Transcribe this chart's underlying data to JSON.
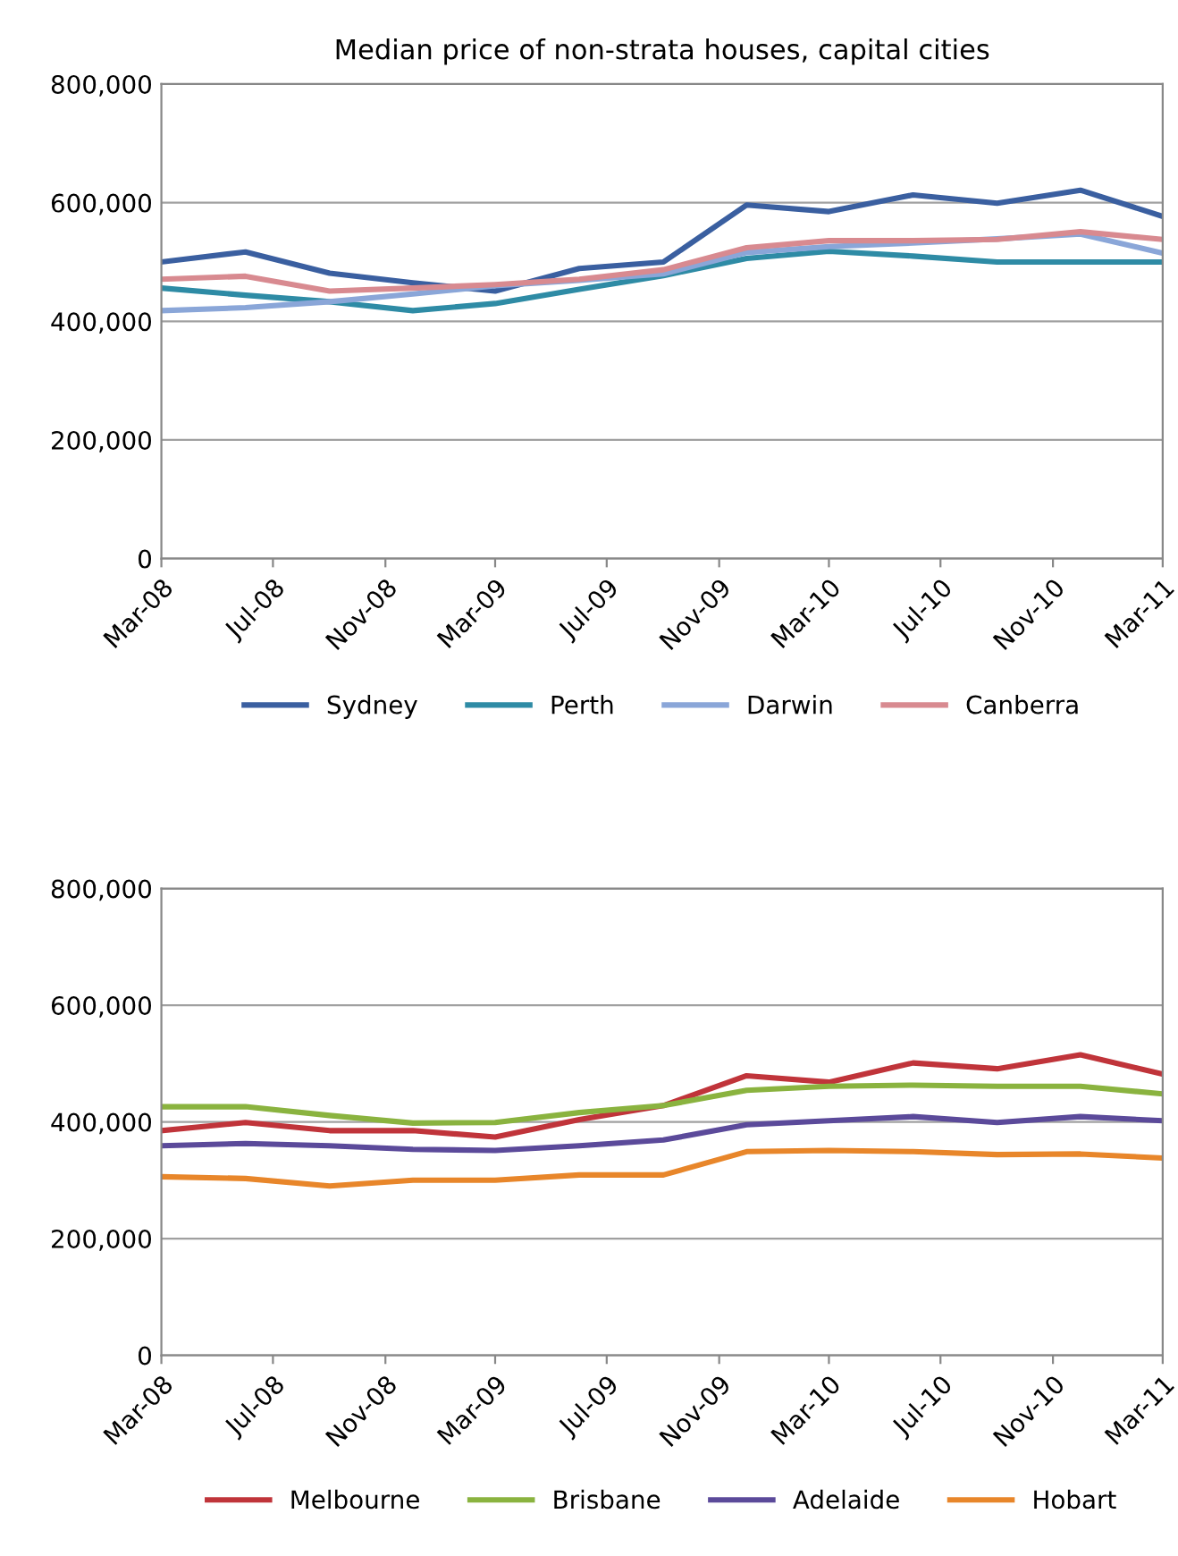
{
  "chart_data": [
    {
      "type": "line",
      "title": "Median price of non-strata houses, capital cities",
      "x": [
        "2008-03",
        "2008-06",
        "2008-09",
        "2008-12",
        "2009-03",
        "2009-06",
        "2009-09",
        "2009-12",
        "2010-03",
        "2010-06",
        "2010-09",
        "2010-12",
        "2011-03"
      ],
      "series": [
        {
          "name": "Sydney",
          "color": "#3a5fa0",
          "values": [
            500000,
            517000,
            481000,
            465000,
            451000,
            489000,
            500000,
            596000,
            585000,
            613000,
            599000,
            621000,
            577000
          ]
        },
        {
          "name": "Perth",
          "color": "#2e8ba5",
          "values": [
            456000,
            444000,
            433000,
            418000,
            430000,
            454000,
            477000,
            506000,
            518000,
            510000,
            500000,
            500000,
            500000
          ]
        },
        {
          "name": "Darwin",
          "color": "#8aa6d8",
          "values": [
            418000,
            423000,
            433000,
            446000,
            460000,
            469000,
            480000,
            516000,
            526000,
            532000,
            539000,
            547000,
            515000
          ]
        },
        {
          "name": "Canberra",
          "color": "#d88a90",
          "values": [
            471000,
            476000,
            451000,
            456000,
            462000,
            471000,
            487000,
            524000,
            536000,
            536000,
            538000,
            551000,
            538000
          ]
        }
      ],
      "xlim": [
        "2008-03",
        "2011-03"
      ],
      "xticks": [
        {
          "value": "2008-03",
          "label": "Mar-08"
        },
        {
          "value": "2008-07",
          "label": "Jul-08"
        },
        {
          "value": "2008-11",
          "label": "Nov-08"
        },
        {
          "value": "2009-03",
          "label": "Mar-09"
        },
        {
          "value": "2009-07",
          "label": "Jul-09"
        },
        {
          "value": "2009-11",
          "label": "Nov-09"
        },
        {
          "value": "2010-03",
          "label": "Mar-10"
        },
        {
          "value": "2010-07",
          "label": "Jul-10"
        },
        {
          "value": "2010-11",
          "label": "Nov-10"
        },
        {
          "value": "2011-03",
          "label": "Mar-11"
        }
      ],
      "ylim": [
        0,
        800000
      ],
      "yticks": [
        {
          "value": 0,
          "label": "0"
        },
        {
          "value": 200000,
          "label": "200,000"
        },
        {
          "value": 400000,
          "label": "400,000"
        },
        {
          "value": 600000,
          "label": "600,000"
        },
        {
          "value": 800000,
          "label": "800,000"
        }
      ],
      "grid": "y",
      "legend": "bottom",
      "marker": "none",
      "line_style": "solid"
    },
    {
      "type": "line",
      "x": [
        "2008-03",
        "2008-06",
        "2008-09",
        "2008-12",
        "2009-03",
        "2009-06",
        "2009-09",
        "2009-12",
        "2010-03",
        "2010-06",
        "2010-09",
        "2010-12",
        "2011-03"
      ],
      "series": [
        {
          "name": "Melbourne",
          "color": "#c0343a",
          "values": [
            385000,
            399000,
            385000,
            385000,
            374000,
            404000,
            428000,
            479000,
            468000,
            501000,
            491000,
            515000,
            482000
          ]
        },
        {
          "name": "Brisbane",
          "color": "#8ab33f",
          "values": [
            426000,
            426000,
            411000,
            398000,
            399000,
            416000,
            428000,
            454000,
            461000,
            463000,
            461000,
            461000,
            448000
          ]
        },
        {
          "name": "Adelaide",
          "color": "#5b4a9a",
          "values": [
            359000,
            363000,
            359000,
            353000,
            351000,
            359000,
            369000,
            395000,
            402000,
            409000,
            399000,
            409000,
            402000
          ]
        },
        {
          "name": "Hobart",
          "color": "#e8862a",
          "values": [
            306000,
            303000,
            290000,
            300000,
            300000,
            309000,
            309000,
            349000,
            351000,
            349000,
            344000,
            345000,
            338000
          ]
        }
      ],
      "xlim": [
        "2008-03",
        "2011-03"
      ],
      "xticks": [
        {
          "value": "2008-03",
          "label": "Mar-08"
        },
        {
          "value": "2008-07",
          "label": "Jul-08"
        },
        {
          "value": "2008-11",
          "label": "Nov-08"
        },
        {
          "value": "2009-03",
          "label": "Mar-09"
        },
        {
          "value": "2009-07",
          "label": "Jul-09"
        },
        {
          "value": "2009-11",
          "label": "Nov-09"
        },
        {
          "value": "2010-03",
          "label": "Mar-10"
        },
        {
          "value": "2010-07",
          "label": "Jul-10"
        },
        {
          "value": "2010-11",
          "label": "Nov-10"
        },
        {
          "value": "2011-03",
          "label": "Mar-11"
        }
      ],
      "ylim": [
        0,
        800000
      ],
      "yticks": [
        {
          "value": 0,
          "label": "0"
        },
        {
          "value": 200000,
          "label": "200,000"
        },
        {
          "value": 400000,
          "label": "400,000"
        },
        {
          "value": 600000,
          "label": "600,000"
        },
        {
          "value": 800000,
          "label": "800,000"
        }
      ],
      "grid": "y",
      "legend": "bottom",
      "marker": "none",
      "line_style": "solid"
    }
  ]
}
